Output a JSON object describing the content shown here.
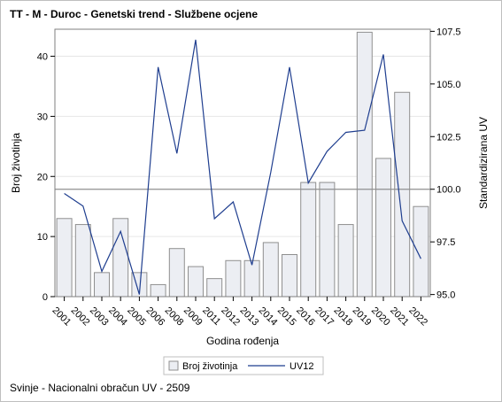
{
  "title": "TT - M - Duroc - Genetski trend - Službene ocjene",
  "footnote": "Svinje - Nacionalni obračun UV - 2509",
  "chart_data": {
    "type": "bar+line",
    "categories": [
      "2001",
      "2002",
      "2003",
      "2004",
      "2005",
      "2006",
      "2008",
      "2009",
      "2011",
      "2012",
      "2013",
      "2014",
      "2015",
      "2016",
      "2017",
      "2018",
      "2019",
      "2020",
      "2021",
      "2022"
    ],
    "series": [
      {
        "name": "Broj životinja",
        "type": "bar",
        "axis": "left",
        "values": [
          13,
          12,
          4,
          13,
          4,
          2,
          8,
          5,
          3,
          6,
          6,
          9,
          7,
          19,
          19,
          12,
          44,
          23,
          34,
          15
        ]
      },
      {
        "name": "UV12",
        "type": "line",
        "axis": "right",
        "values": [
          99.8,
          99.2,
          96.1,
          98.0,
          95.0,
          105.8,
          101.7,
          107.1,
          98.6,
          99.4,
          96.4,
          100.8,
          105.8,
          100.3,
          101.8,
          102.7,
          102.8,
          106.4,
          98.5,
          96.7
        ]
      }
    ],
    "xlabel": "Godina rođenja",
    "ylabel_left": "Broj životinja",
    "ylabel_right": "Standardizirana UV",
    "ylim_left": [
      0,
      44.5
    ],
    "ylim_right": [
      94.9,
      107.6
    ],
    "yticks_left": [
      "0",
      "10",
      "20",
      "30",
      "40"
    ],
    "yticks_right": [
      "95.0",
      "97.5",
      "100.0",
      "102.5",
      "105.0",
      "107.5"
    ],
    "reference_line_right": 100.0,
    "grid": true,
    "legend_position": "bottom",
    "colors": {
      "bar_fill": "#eceef3",
      "bar_stroke": "#8f8f8f",
      "line": "#1f3e8f",
      "reference": "#8f8f8f",
      "grid": "#e6e6e6"
    }
  }
}
